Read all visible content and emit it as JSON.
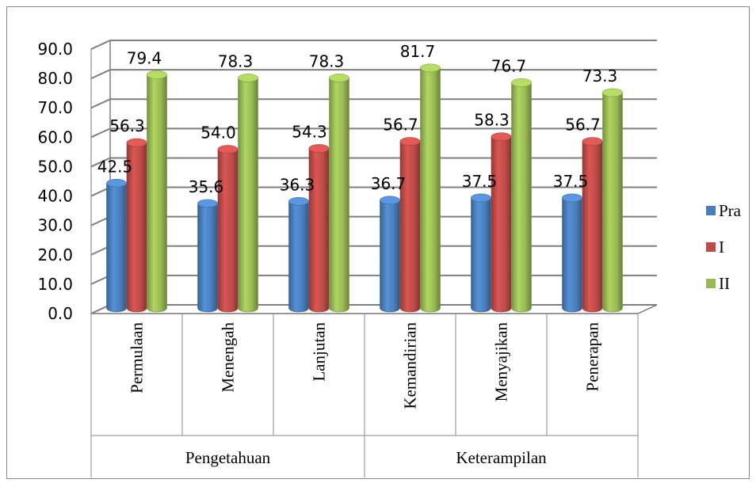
{
  "chart_data": {
    "type": "bar",
    "categories": [
      "Permulaan",
      "Menengah",
      "Lanjutan",
      "Kemandirian",
      "Menyajikan",
      "Penerapan"
    ],
    "groups": [
      {
        "label": "Pengetahuan",
        "categories": [
          "Permulaan",
          "Menengah",
          "Lanjutan"
        ]
      },
      {
        "label": "Keterampilan",
        "categories": [
          "Kemandirian",
          "Menyajikan",
          "Penerapan"
        ]
      }
    ],
    "series": [
      {
        "name": "Pra",
        "color": "#4a7ebb",
        "values": [
          42.5,
          35.6,
          36.3,
          36.7,
          37.5,
          37.5
        ]
      },
      {
        "name": "I",
        "color": "#be4b48",
        "values": [
          56.3,
          54.0,
          54.3,
          56.7,
          58.3,
          56.7
        ]
      },
      {
        "name": "II",
        "color": "#98b954",
        "values": [
          79.4,
          78.3,
          78.3,
          81.7,
          76.7,
          73.3
        ]
      }
    ],
    "value_labels": [
      [
        "42.5",
        "35.6",
        "36.3",
        "36.7",
        "37.5",
        "37.5"
      ],
      [
        "56.3",
        "54.0",
        "54.3",
        "56.7",
        "58.3",
        "56.7"
      ],
      [
        "79.4",
        "78.3",
        "78.3",
        "81.7",
        "76.7",
        "73.3"
      ]
    ],
    "y_ticks": [
      "0.0",
      "10.0",
      "20.0",
      "30.0",
      "40.0",
      "50.0",
      "60.0",
      "70.0",
      "80.0",
      "90.0"
    ],
    "ylim": [
      0,
      90
    ],
    "grid": true,
    "legend": "right",
    "style": "3d-cylinder"
  }
}
